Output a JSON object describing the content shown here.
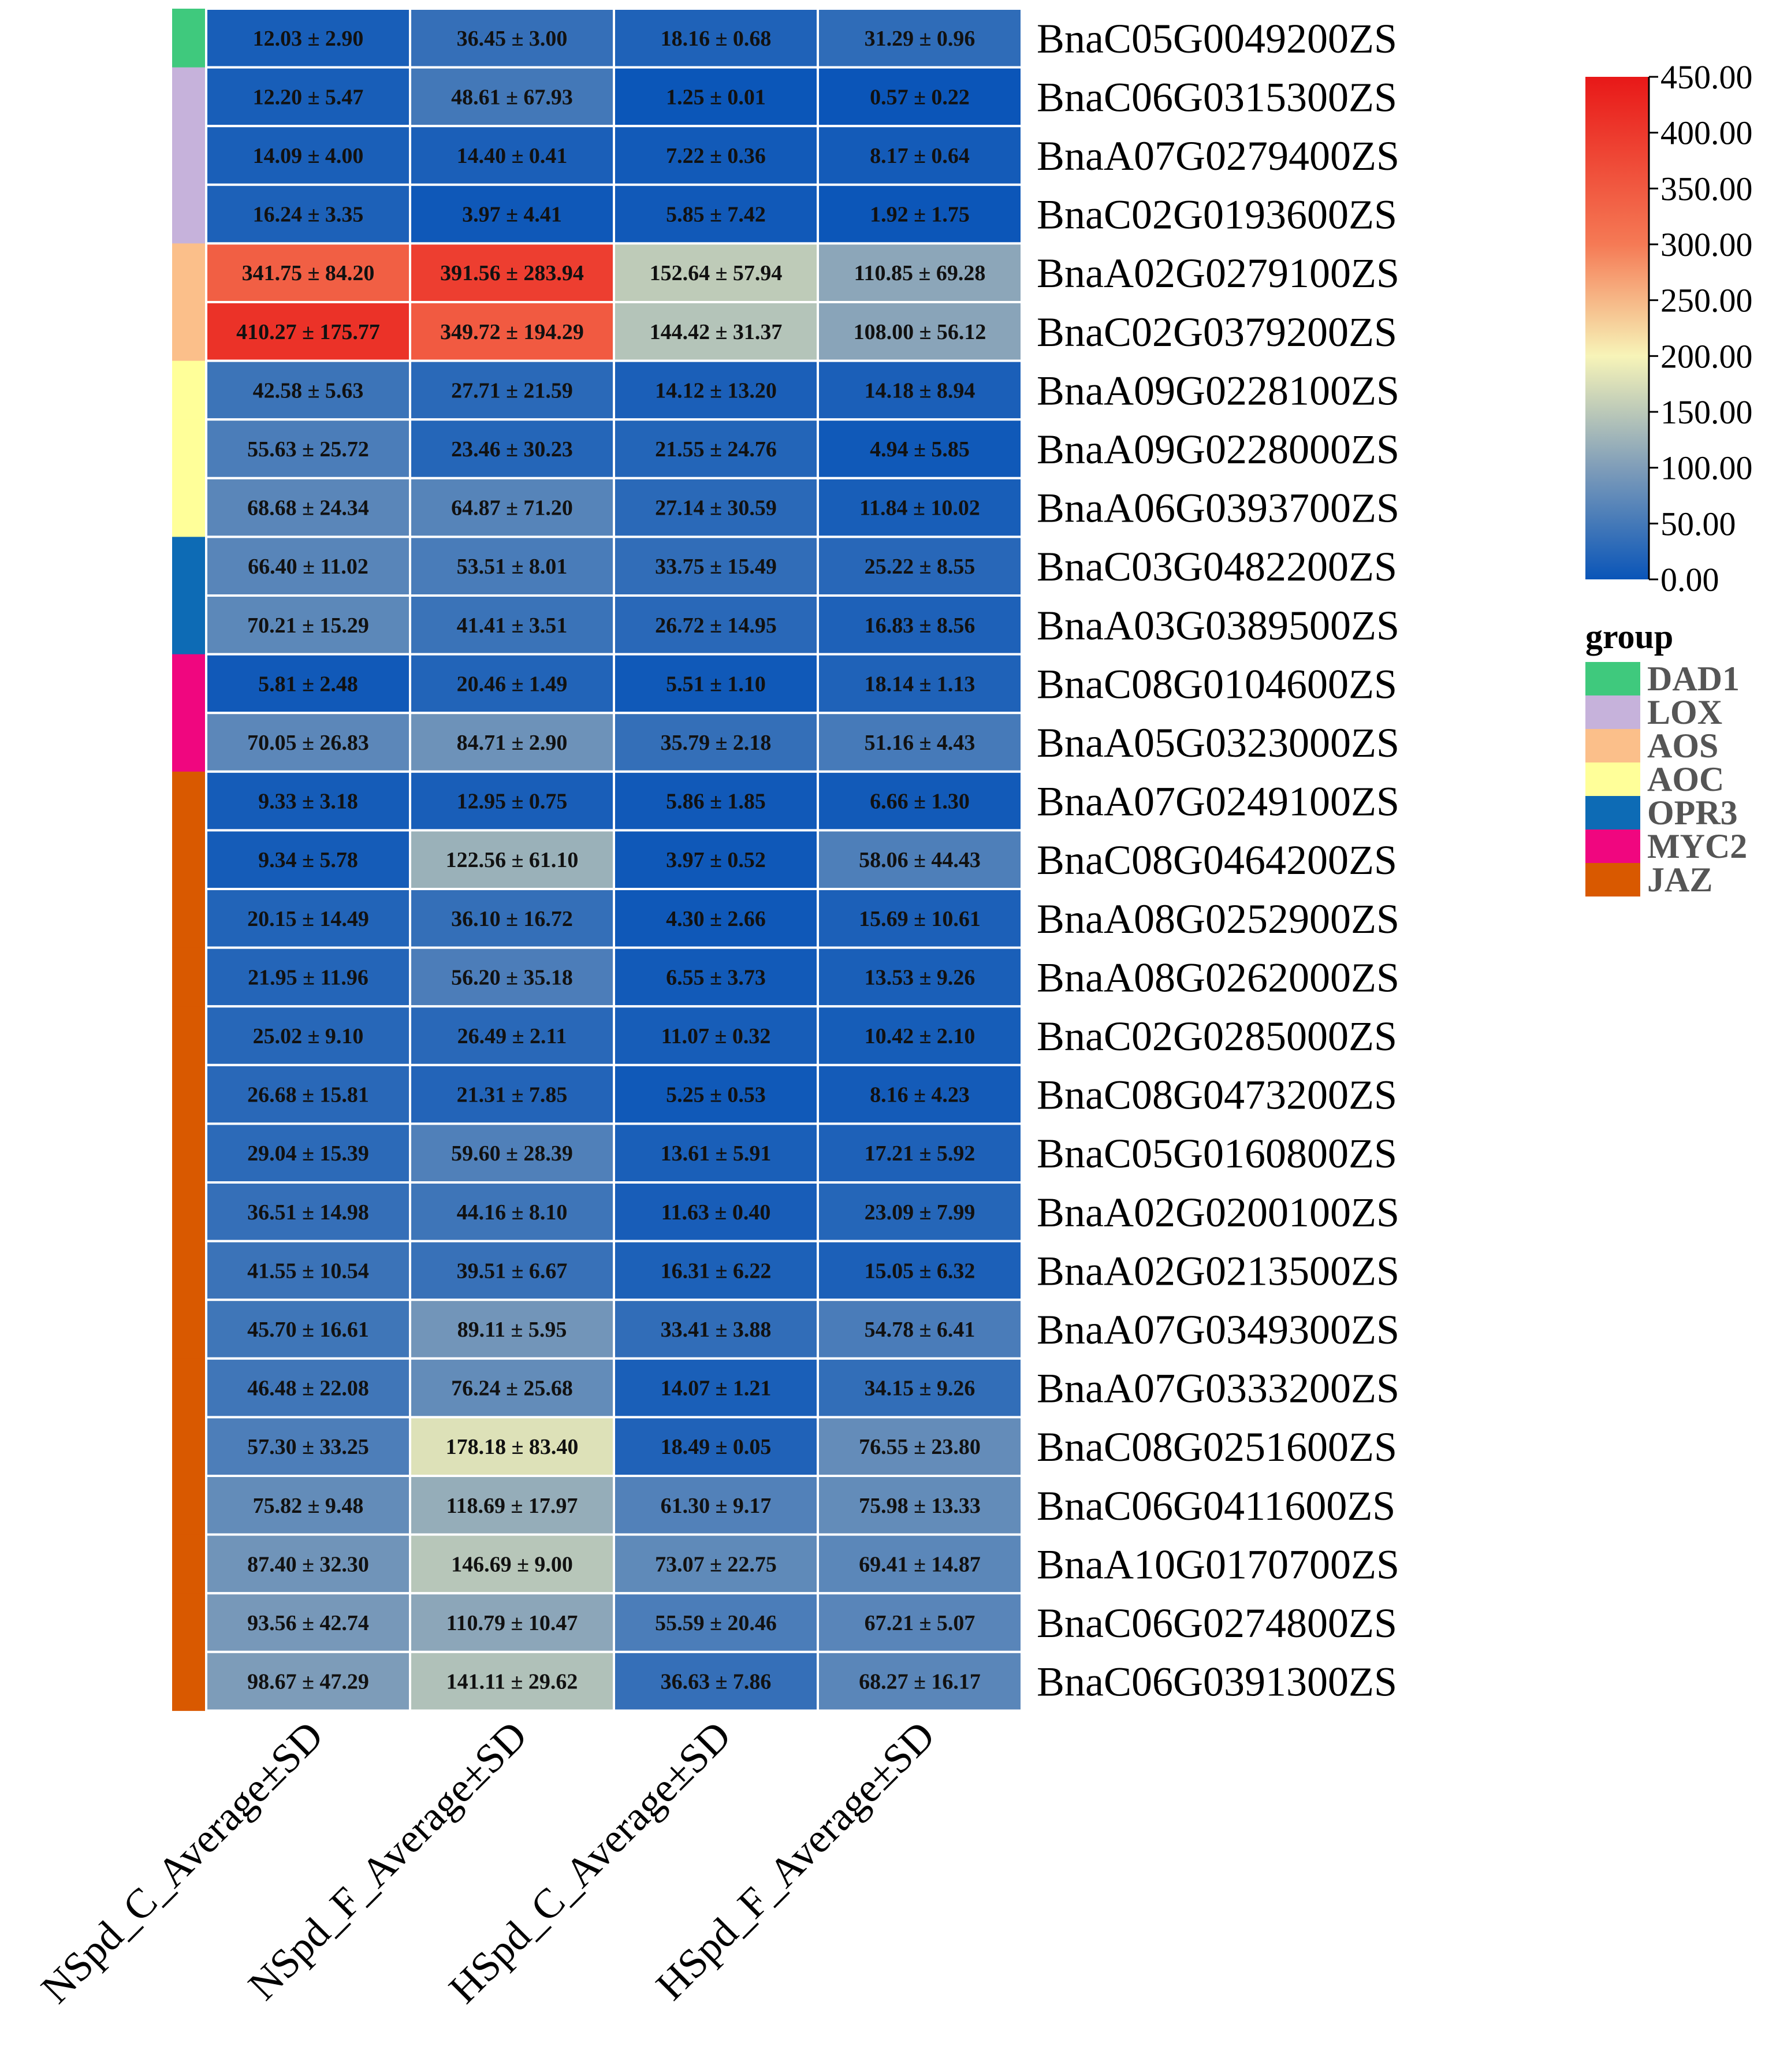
{
  "chart_data": {
    "type": "heatmap",
    "columns": [
      "NSpd_C_Average±SD",
      "NSpd_F_Average±SD",
      "HSpd_C_Average±SD",
      "HSpd_F_Average±SD"
    ],
    "rows": [
      {
        "gene": "BnaC05G0049200ZS",
        "group": "DAD1",
        "values": [
          12.03,
          36.45,
          18.16,
          31.29
        ],
        "labels": [
          "12.03 ± 2.90",
          "36.45 ± 3.00",
          "18.16 ± 0.68",
          "31.29 ± 0.96"
        ]
      },
      {
        "gene": "BnaC06G0315300ZS",
        "group": "LOX",
        "values": [
          12.2,
          48.61,
          1.25,
          0.57
        ],
        "labels": [
          "12.20 ± 5.47",
          "48.61 ± 67.93",
          "1.25 ± 0.01",
          "0.57 ± 0.22"
        ]
      },
      {
        "gene": "BnaA07G0279400ZS",
        "group": "LOX",
        "values": [
          14.09,
          14.4,
          7.22,
          8.17
        ],
        "labels": [
          "14.09 ± 4.00",
          "14.40 ± 0.41",
          "7.22 ± 0.36",
          "8.17 ± 0.64"
        ]
      },
      {
        "gene": "BnaC02G0193600ZS",
        "group": "LOX",
        "values": [
          16.24,
          3.97,
          5.85,
          1.92
        ],
        "labels": [
          "16.24 ± 3.35",
          "3.97 ± 4.41",
          "5.85 ± 7.42",
          "1.92 ± 1.75"
        ]
      },
      {
        "gene": "BnaA02G0279100ZS",
        "group": "AOS",
        "values": [
          341.75,
          391.56,
          152.64,
          110.85
        ],
        "labels": [
          "341.75 ± 84.20",
          "391.56 ± 283.94",
          "152.64 ± 57.94",
          "110.85 ± 69.28"
        ]
      },
      {
        "gene": "BnaC02G0379200ZS",
        "group": "AOS",
        "values": [
          410.27,
          349.72,
          144.42,
          108.0
        ],
        "labels": [
          "410.27 ± 175.77",
          "349.72 ± 194.29",
          "144.42 ± 31.37",
          "108.00 ± 56.12"
        ]
      },
      {
        "gene": "BnaA09G0228100ZS",
        "group": "AOC",
        "values": [
          42.58,
          27.71,
          14.12,
          14.18
        ],
        "labels": [
          "42.58 ± 5.63",
          "27.71 ± 21.59",
          "14.12 ± 13.20",
          "14.18 ± 8.94"
        ]
      },
      {
        "gene": "BnaA09G0228000ZS",
        "group": "AOC",
        "values": [
          55.63,
          23.46,
          21.55,
          4.94
        ],
        "labels": [
          "55.63 ± 25.72",
          "23.46 ± 30.23",
          "21.55 ± 24.76",
          "4.94 ± 5.85"
        ]
      },
      {
        "gene": "BnaA06G0393700ZS",
        "group": "AOC",
        "values": [
          68.68,
          64.87,
          27.14,
          11.84
        ],
        "labels": [
          "68.68 ± 24.34",
          "64.87 ± 71.20",
          "27.14 ± 30.59",
          "11.84 ± 10.02"
        ]
      },
      {
        "gene": "BnaC03G0482200ZS",
        "group": "OPR3",
        "values": [
          66.4,
          53.51,
          33.75,
          25.22
        ],
        "labels": [
          "66.40 ± 11.02",
          "53.51 ± 8.01",
          "33.75 ± 15.49",
          "25.22 ± 8.55"
        ]
      },
      {
        "gene": "BnaA03G0389500ZS",
        "group": "OPR3",
        "values": [
          70.21,
          41.41,
          26.72,
          16.83
        ],
        "labels": [
          "70.21 ± 15.29",
          "41.41 ± 3.51",
          "26.72 ± 14.95",
          "16.83 ± 8.56"
        ]
      },
      {
        "gene": "BnaC08G0104600ZS",
        "group": "MYC2",
        "values": [
          5.81,
          20.46,
          5.51,
          18.14
        ],
        "labels": [
          "5.81 ± 2.48",
          "20.46 ± 1.49",
          "5.51 ± 1.10",
          "18.14 ± 1.13"
        ]
      },
      {
        "gene": "BnaA05G0323000ZS",
        "group": "MYC2",
        "values": [
          70.05,
          84.71,
          35.79,
          51.16
        ],
        "labels": [
          "70.05 ± 26.83",
          "84.71 ± 2.90",
          "35.79 ± 2.18",
          "51.16 ± 4.43"
        ]
      },
      {
        "gene": "BnaA07G0249100ZS",
        "group": "JAZ",
        "values": [
          9.33,
          12.95,
          5.86,
          6.66
        ],
        "labels": [
          "9.33 ± 3.18",
          "12.95 ± 0.75",
          "5.86 ± 1.85",
          "6.66 ± 1.30"
        ]
      },
      {
        "gene": "BnaC08G0464200ZS",
        "group": "JAZ",
        "values": [
          9.34,
          122.56,
          3.97,
          58.06
        ],
        "labels": [
          "9.34 ± 5.78",
          "122.56 ± 61.10",
          "3.97 ± 0.52",
          "58.06 ± 44.43"
        ]
      },
      {
        "gene": "BnaA08G0252900ZS",
        "group": "JAZ",
        "values": [
          20.15,
          36.1,
          4.3,
          15.69
        ],
        "labels": [
          "20.15 ± 14.49",
          "36.10 ± 16.72",
          "4.30 ± 2.66",
          "15.69 ± 10.61"
        ]
      },
      {
        "gene": "BnaA08G0262000ZS",
        "group": "JAZ",
        "values": [
          21.95,
          56.2,
          6.55,
          13.53
        ],
        "labels": [
          "21.95 ± 11.96",
          "56.20 ± 35.18",
          "6.55 ± 3.73",
          "13.53 ± 9.26"
        ]
      },
      {
        "gene": "BnaC02G0285000ZS",
        "group": "JAZ",
        "values": [
          25.02,
          26.49,
          11.07,
          10.42
        ],
        "labels": [
          "25.02 ± 9.10",
          "26.49 ± 2.11",
          "11.07 ± 0.32",
          "10.42 ± 2.10"
        ]
      },
      {
        "gene": "BnaC08G0473200ZS",
        "group": "JAZ",
        "values": [
          26.68,
          21.31,
          5.25,
          8.16
        ],
        "labels": [
          "26.68 ± 15.81",
          "21.31 ± 7.85",
          "5.25 ± 0.53",
          "8.16 ± 4.23"
        ]
      },
      {
        "gene": "BnaC05G0160800ZS",
        "group": "JAZ",
        "values": [
          29.04,
          59.6,
          13.61,
          17.21
        ],
        "labels": [
          "29.04 ± 15.39",
          "59.60 ± 28.39",
          "13.61 ± 5.91",
          "17.21 ± 5.92"
        ]
      },
      {
        "gene": "BnaA02G0200100ZS",
        "group": "JAZ",
        "values": [
          36.51,
          44.16,
          11.63,
          23.09
        ],
        "labels": [
          "36.51 ± 14.98",
          "44.16 ± 8.10",
          "11.63 ± 0.40",
          "23.09 ± 7.99"
        ]
      },
      {
        "gene": "BnaA02G0213500ZS",
        "group": "JAZ",
        "values": [
          41.55,
          39.51,
          16.31,
          15.05
        ],
        "labels": [
          "41.55 ± 10.54",
          "39.51 ± 6.67",
          "16.31 ± 6.22",
          "15.05 ± 6.32"
        ]
      },
      {
        "gene": "BnaA07G0349300ZS",
        "group": "JAZ",
        "values": [
          45.7,
          89.11,
          33.41,
          54.78
        ],
        "labels": [
          "45.70 ± 16.61",
          "89.11 ± 5.95",
          "33.41 ± 3.88",
          "54.78 ± 6.41"
        ]
      },
      {
        "gene": "BnaA07G0333200ZS",
        "group": "JAZ",
        "values": [
          46.48,
          76.24,
          14.07,
          34.15
        ],
        "labels": [
          "46.48 ± 22.08",
          "76.24 ± 25.68",
          "14.07 ± 1.21",
          "34.15 ± 9.26"
        ]
      },
      {
        "gene": "BnaC08G0251600ZS",
        "group": "JAZ",
        "values": [
          57.3,
          178.18,
          18.49,
          76.55
        ],
        "labels": [
          "57.30 ± 33.25",
          "178.18 ± 83.40",
          "18.49 ± 0.05",
          "76.55 ± 23.80"
        ]
      },
      {
        "gene": "BnaC06G0411600ZS",
        "group": "JAZ",
        "values": [
          75.82,
          118.69,
          61.3,
          75.98
        ],
        "labels": [
          "75.82 ± 9.48",
          "118.69 ± 17.97",
          "61.30 ± 9.17",
          "75.98 ± 13.33"
        ]
      },
      {
        "gene": "BnaA10G0170700ZS",
        "group": "JAZ",
        "values": [
          87.4,
          146.69,
          73.07,
          69.41
        ],
        "labels": [
          "87.40 ± 32.30",
          "146.69 ± 9.00",
          "73.07 ± 22.75",
          "69.41 ± 14.87"
        ]
      },
      {
        "gene": "BnaC06G0274800ZS",
        "group": "JAZ",
        "values": [
          93.56,
          110.79,
          55.59,
          67.21
        ],
        "labels": [
          "93.56 ± 42.74",
          "110.79 ± 10.47",
          "55.59 ± 20.46",
          "67.21 ± 5.07"
        ]
      },
      {
        "gene": "BnaC06G0391300ZS",
        "group": "JAZ",
        "values": [
          98.67,
          141.11,
          36.63,
          68.27
        ],
        "labels": [
          "98.67 ± 47.29",
          "141.11 ± 29.62",
          "36.63 ± 7.86",
          "68.27 ± 16.17"
        ]
      }
    ],
    "color_scale": {
      "min": 0,
      "max": 450,
      "ticks": [
        "450.00",
        "400.00",
        "350.00",
        "300.00",
        "250.00",
        "200.00",
        "150.00",
        "100.00",
        "50.00",
        "0.00"
      ],
      "stops": [
        {
          "value": 0,
          "color": "#0a55b8"
        },
        {
          "value": 100,
          "color": "#7f9db9"
        },
        {
          "value": 200,
          "color": "#f7f4b8"
        },
        {
          "value": 300,
          "color": "#f57a55"
        },
        {
          "value": 450,
          "color": "#e81818"
        }
      ]
    },
    "group_legend": {
      "title": "group",
      "items": [
        {
          "name": "DAD1",
          "color": "#3fc97d"
        },
        {
          "name": "LOX",
          "color": "#c6b2db"
        },
        {
          "name": "AOS",
          "color": "#fbbf8a"
        },
        {
          "name": "AOC",
          "color": "#ffff99"
        },
        {
          "name": "OPR3",
          "color": "#0d6bb5"
        },
        {
          "name": "MYC2",
          "color": "#f0067f"
        },
        {
          "name": "JAZ",
          "color": "#d95900"
        }
      ]
    }
  }
}
